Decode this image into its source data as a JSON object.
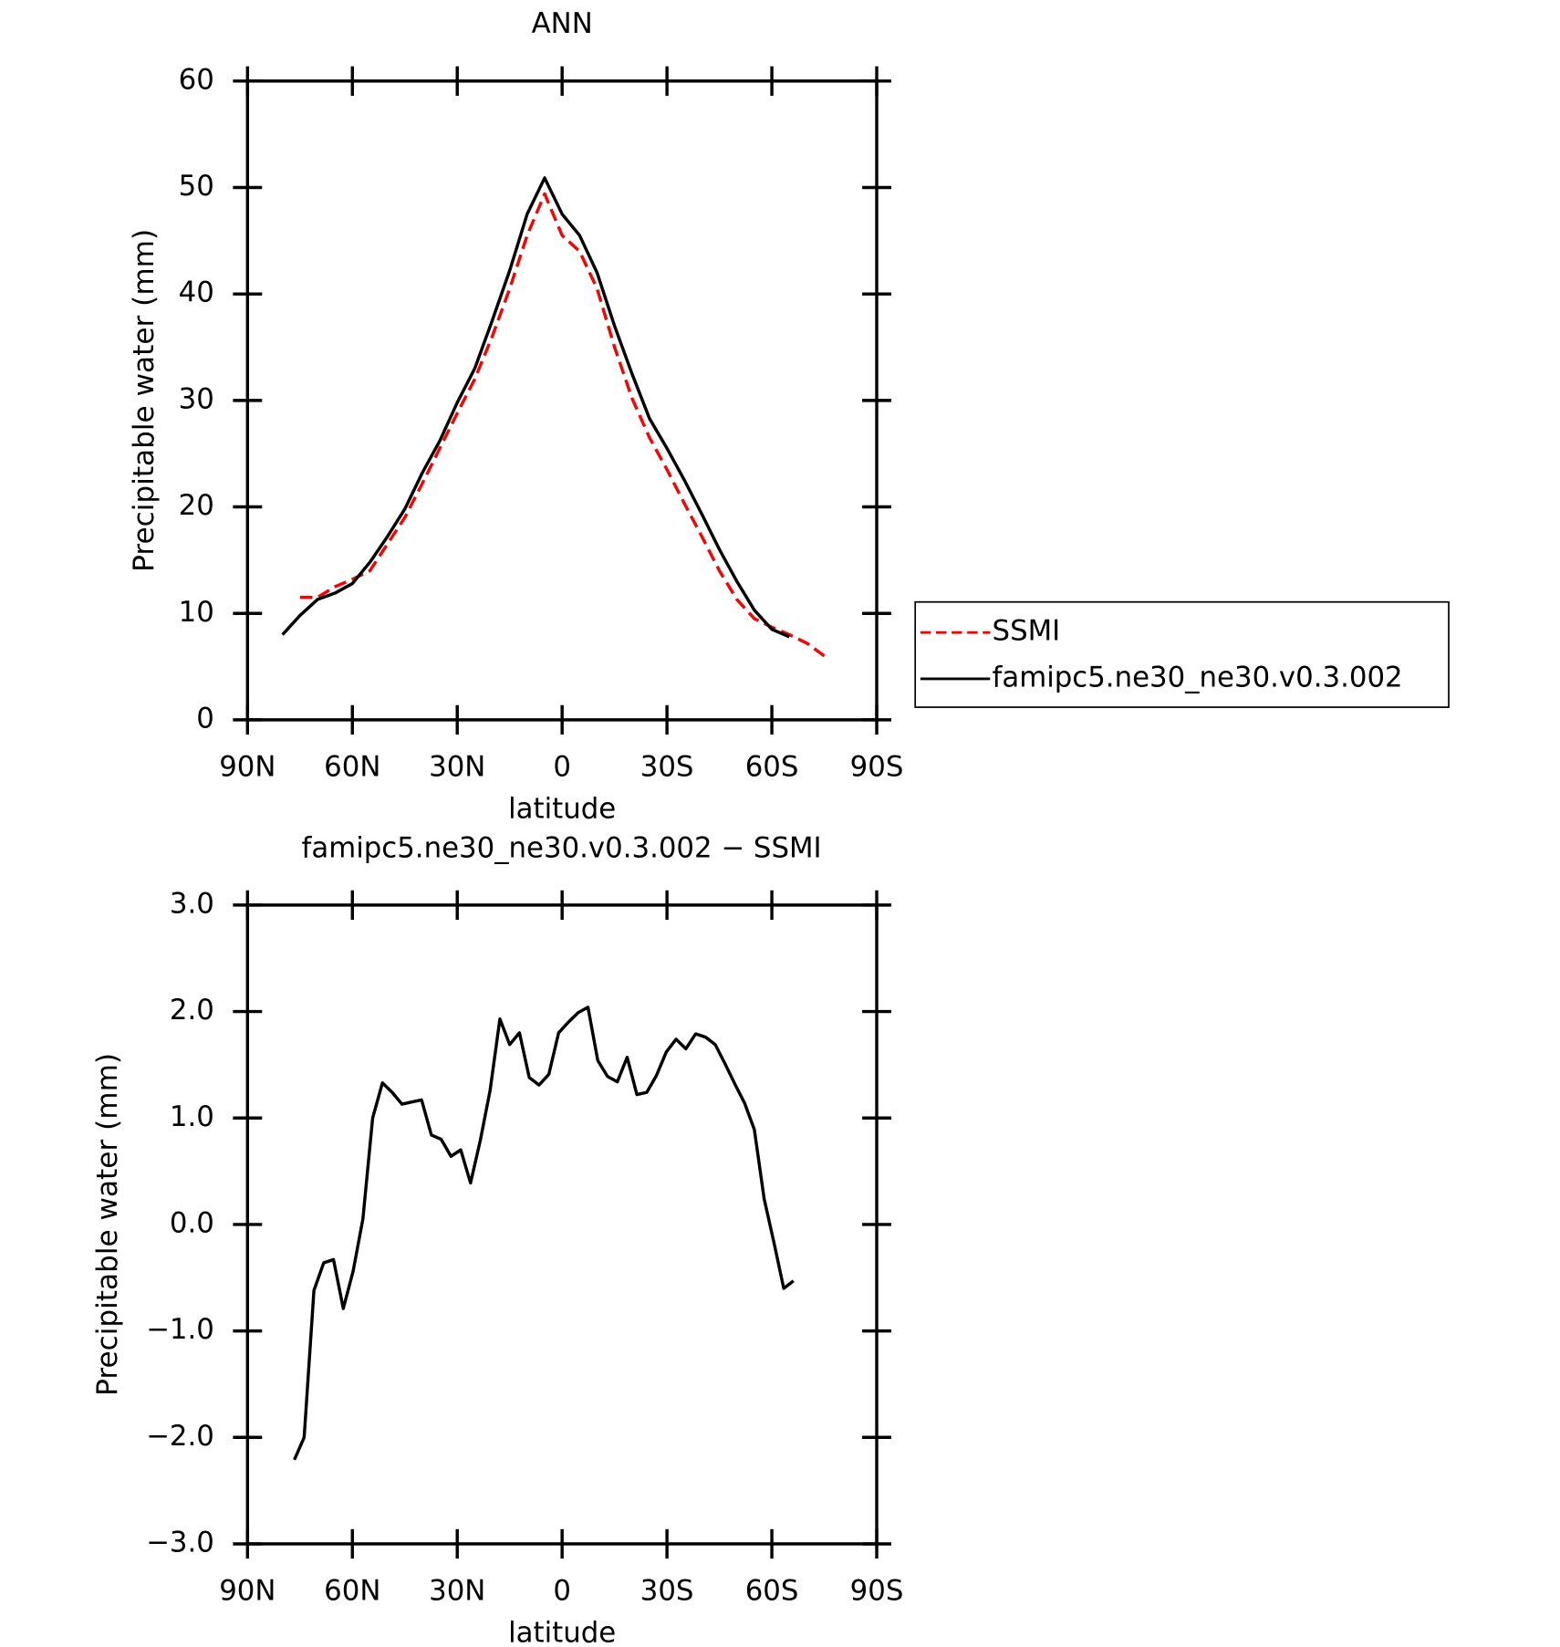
{
  "chart_data": [
    {
      "type": "line",
      "title": "ANN",
      "x_label": "latitude",
      "y_label": "Precipitable water (mm)",
      "x": [
        80,
        75,
        70,
        65,
        60,
        55,
        50,
        45,
        40,
        35,
        30,
        25,
        20,
        15,
        10,
        5,
        0,
        -5,
        -10,
        -15,
        -20,
        -25,
        -30,
        -35,
        -40,
        -45,
        -50,
        -55,
        -60,
        -65,
        -70,
        -75
      ],
      "series": [
        {
          "name": "SSMI",
          "color": "#ff0000",
          "style": "dashed",
          "values": [
            null,
            11.5,
            11.5,
            12.5,
            13.2,
            14.0,
            16.5,
            19.0,
            22.2,
            25.5,
            28.8,
            32.0,
            36.0,
            40.5,
            45.5,
            49.4,
            45.5,
            44.0,
            40.5,
            35.0,
            30.2,
            26.5,
            23.5,
            20.3,
            17.2,
            14.0,
            11.3,
            9.5,
            8.7,
            8.0,
            7.2,
            6.0
          ]
        },
        {
          "name": "famipc5.ne30_ne30.v0.3.002",
          "color": "#000000",
          "style": "solid",
          "values": [
            8.0,
            9.8,
            11.3,
            11.9,
            12.8,
            14.8,
            17.2,
            19.8,
            23.2,
            26.2,
            29.8,
            33.0,
            37.5,
            42.2,
            47.5,
            50.9,
            47.5,
            45.5,
            42.0,
            37.0,
            32.5,
            28.3,
            25.5,
            22.5,
            19.3,
            16.0,
            13.0,
            10.3,
            8.5,
            7.8,
            null,
            null
          ]
        }
      ],
      "xlim": [
        90,
        -90
      ],
      "xticks": [
        {
          "value": 90,
          "label": "90N"
        },
        {
          "value": 60,
          "label": "60N"
        },
        {
          "value": 30,
          "label": "30N"
        },
        0,
        {
          "value": -30,
          "label": "30S"
        },
        {
          "value": -60,
          "label": "60S"
        },
        {
          "value": -90,
          "label": "90S"
        }
      ],
      "ylim": [
        0,
        60
      ],
      "yticks": [
        0,
        10,
        20,
        30,
        40,
        50,
        60
      ],
      "legend": "right"
    },
    {
      "type": "line",
      "title": "famipc5.ne30_ne30.v0.3.002 − SSMI",
      "x_label": "latitude",
      "y_label": "Precipitable water (mm)",
      "x": [
        76.6,
        73.8,
        71.0,
        68.2,
        65.4,
        62.6,
        59.8,
        57.0,
        54.2,
        51.4,
        48.6,
        45.8,
        43.0,
        40.2,
        37.4,
        34.6,
        31.8,
        29.0,
        26.2,
        23.4,
        20.6,
        17.8,
        15.0,
        12.2,
        9.4,
        6.6,
        3.8,
        1.0,
        -1.8,
        -4.6,
        -7.4,
        -10.2,
        -13.0,
        -15.8,
        -18.6,
        -21.4,
        -24.2,
        -27.0,
        -29.8,
        -32.6,
        -35.4,
        -38.2,
        -41.0,
        -43.8,
        -46.6,
        -49.4,
        -52.2,
        -55.0,
        -57.8,
        -60.6,
        -63.4,
        -66.2
      ],
      "series": [
        {
          "color": "#000000",
          "style": "solid",
          "values": [
            -2.21,
            -2.0,
            -0.62,
            -0.36,
            -0.33,
            -0.79,
            -0.44,
            0.05,
            1.0,
            1.33,
            1.24,
            1.13,
            1.15,
            1.17,
            0.84,
            0.8,
            0.64,
            0.7,
            0.39,
            0.79,
            1.26,
            1.93,
            1.69,
            1.8,
            1.38,
            1.31,
            1.41,
            1.8,
            1.9,
            1.99,
            2.04,
            1.54,
            1.39,
            1.34,
            1.57,
            1.22,
            1.24,
            1.4,
            1.62,
            1.74,
            1.65,
            1.79,
            1.76,
            1.69,
            1.51,
            1.32,
            1.14,
            0.89,
            0.24,
            -0.17,
            -0.6,
            -0.53
          ]
        }
      ],
      "xlim": [
        90,
        -90
      ],
      "xticks": [
        {
          "value": 90,
          "label": "90N"
        },
        {
          "value": 60,
          "label": "60N"
        },
        {
          "value": 30,
          "label": "30N"
        },
        0,
        {
          "value": -30,
          "label": "30S"
        },
        {
          "value": -60,
          "label": "60S"
        },
        {
          "value": -90,
          "label": "90S"
        }
      ],
      "ylim": [
        -3,
        3
      ],
      "yticks": [
        {
          "value": -3,
          "label": "−3.0"
        },
        {
          "value": -2,
          "label": "−2.0"
        },
        {
          "value": -1,
          "label": "−1.0"
        },
        {
          "value": 0,
          "label": "0.0"
        },
        {
          "value": 1,
          "label": "1.0"
        },
        {
          "value": 2,
          "label": "2.0"
        },
        {
          "value": 3,
          "label": "3.0"
        }
      ]
    }
  ]
}
